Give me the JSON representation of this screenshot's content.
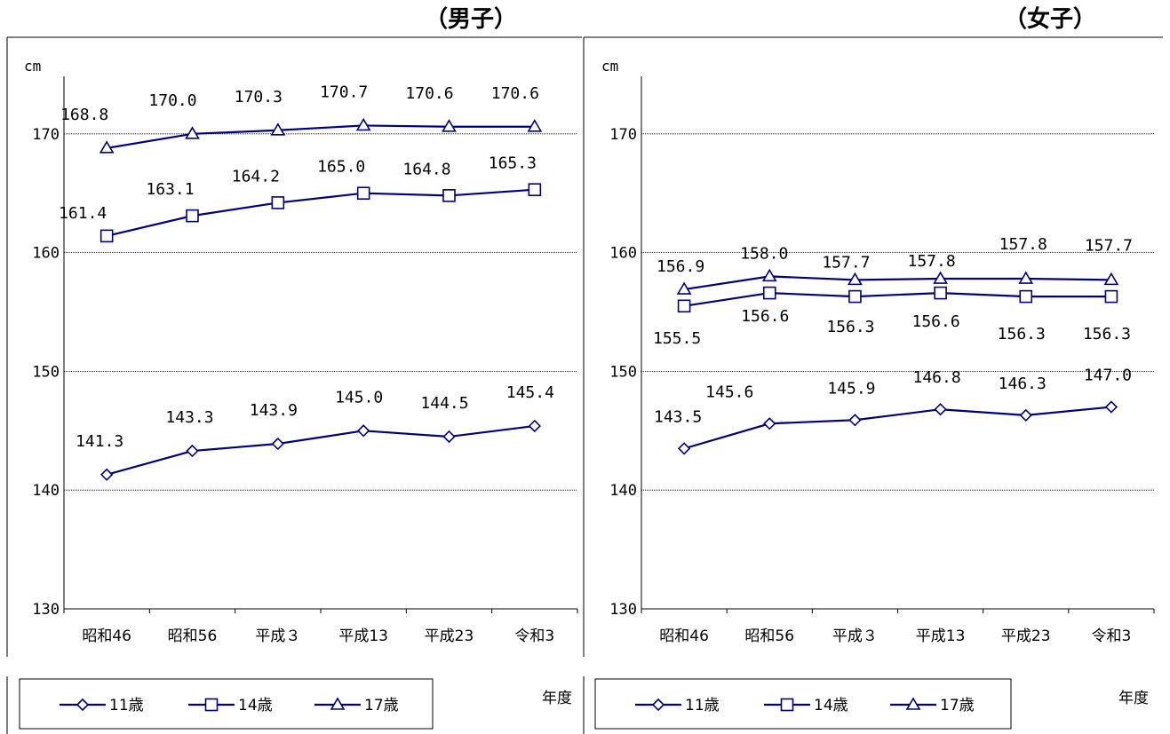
{
  "chart_data": [
    {
      "type": "line",
      "title": "（男子）",
      "ylabel": "cm",
      "xlabel": "年度",
      "ylim": [
        130,
        180
      ],
      "yticks": [
        130,
        140,
        150,
        160,
        170
      ],
      "grid": true,
      "legend_position": "bottom-left",
      "categories": [
        "昭和46",
        "昭和56",
        "平成３",
        "平成13",
        "平成23",
        "令和3"
      ],
      "series": [
        {
          "name": "11歳",
          "marker": "diamond",
          "values": [
            141.3,
            143.3,
            143.9,
            145.0,
            144.5,
            145.4
          ],
          "labels": [
            "141.3",
            "143.3",
            "143.9",
            "145.0",
            "144.5",
            "145.4"
          ]
        },
        {
          "name": "14歳",
          "marker": "square",
          "values": [
            161.4,
            163.1,
            164.2,
            165.0,
            164.8,
            165.3
          ],
          "labels": [
            "161.4",
            "163.1",
            "164.2",
            "165.0",
            "164.8",
            "165.3"
          ]
        },
        {
          "name": "17歳",
          "marker": "triangle",
          "values": [
            168.8,
            170.0,
            170.3,
            170.7,
            170.6,
            170.6
          ],
          "labels": [
            "168.8",
            "170.0",
            "170.3",
            "170.7",
            "170.6",
            "170.6"
          ]
        }
      ]
    },
    {
      "type": "line",
      "title": "（女子）",
      "ylabel": "cm",
      "xlabel": "年度",
      "ylim": [
        130,
        180
      ],
      "yticks": [
        130,
        140,
        150,
        160,
        170
      ],
      "grid": true,
      "legend_position": "bottom-left",
      "categories": [
        "昭和46",
        "昭和56",
        "平成３",
        "平成13",
        "平成23",
        "令和3"
      ],
      "series": [
        {
          "name": "11歳",
          "marker": "diamond",
          "values": [
            143.5,
            145.6,
            145.9,
            146.8,
            146.3,
            147.0
          ],
          "labels": [
            "143.5",
            "145.6",
            "145.9",
            "146.8",
            "146.3",
            "147.0"
          ]
        },
        {
          "name": "14歳",
          "marker": "square",
          "values": [
            155.5,
            156.6,
            156.3,
            156.6,
            156.3,
            156.3
          ],
          "labels": [
            "155.5",
            "156.6",
            "156.3",
            "156.6",
            "156.3",
            "156.3"
          ]
        },
        {
          "name": "17歳",
          "marker": "triangle",
          "values": [
            156.9,
            158.0,
            157.7,
            157.8,
            157.8,
            157.7
          ],
          "labels": [
            "156.9",
            "158.0",
            "157.7",
            "157.8",
            "157.8",
            "157.7"
          ]
        }
      ]
    }
  ],
  "colors": {
    "series": "#000080",
    "grid": "#000000",
    "frame": "#000000"
  }
}
